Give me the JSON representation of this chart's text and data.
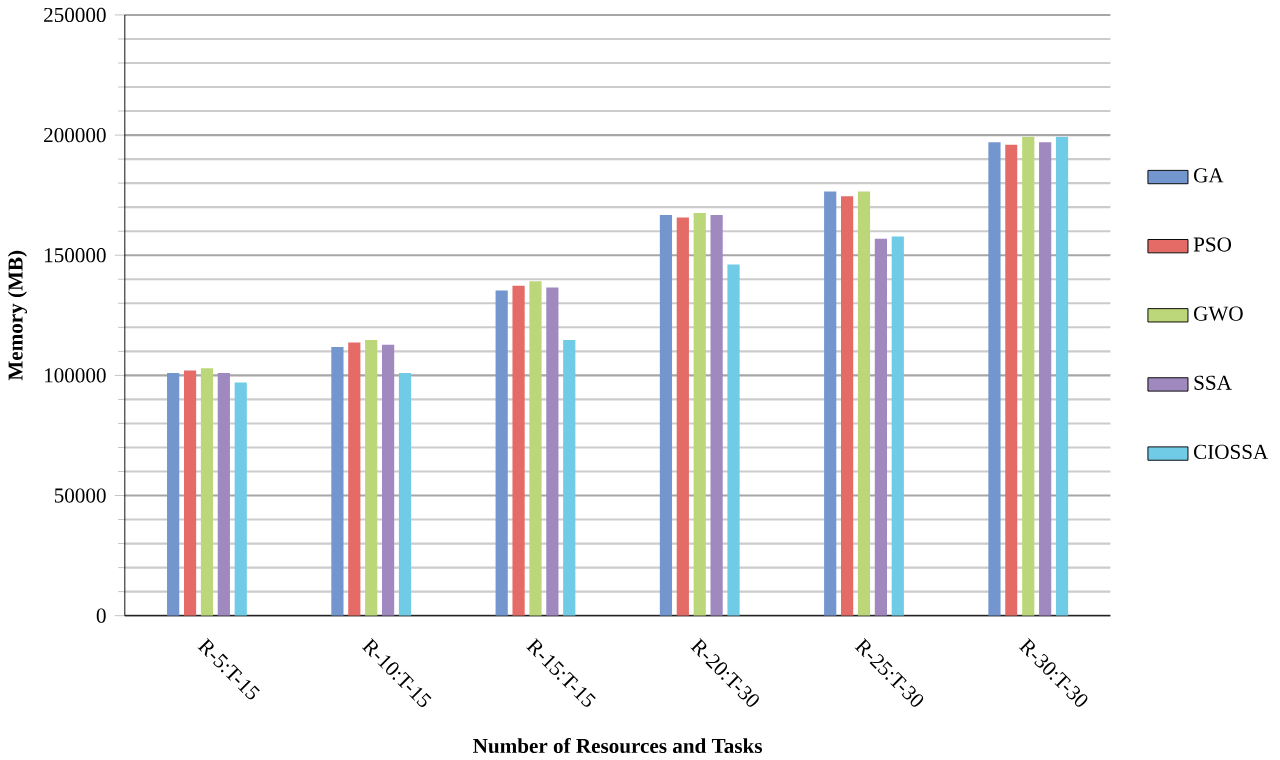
{
  "chart_data": {
    "type": "bar",
    "xlabel": "Number of Resources and Tasks",
    "ylabel": "Memory (MB)",
    "categories": [
      "R-5:T-15",
      "R-10:T-15",
      "R-15:T-15",
      "R-20:T-30",
      "R-25:T-30",
      "R-30:T-30"
    ],
    "series": [
      {
        "name": "GA",
        "color": "#7396cf",
        "values": [
          101000,
          111800,
          135300,
          166700,
          176500,
          197000
        ]
      },
      {
        "name": "PSO",
        "color": "#e56b66",
        "values": [
          102000,
          113700,
          137300,
          165700,
          174500,
          196000
        ]
      },
      {
        "name": "GWO",
        "color": "#bcd77a",
        "values": [
          103000,
          114700,
          139200,
          167600,
          176500,
          199300
        ]
      },
      {
        "name": "SSA",
        "color": "#a089bf",
        "values": [
          101000,
          112700,
          136600,
          166700,
          156900,
          197000
        ]
      },
      {
        "name": "CIOSSA",
        "color": "#6fcbe6",
        "values": [
          97000,
          101000,
          114700,
          146100,
          157800,
          199300
        ]
      }
    ],
    "ylim": [
      0,
      250000
    ],
    "yticks": [
      0,
      50000,
      100000,
      150000,
      200000,
      250000
    ],
    "grid": "y",
    "legend": "right"
  }
}
